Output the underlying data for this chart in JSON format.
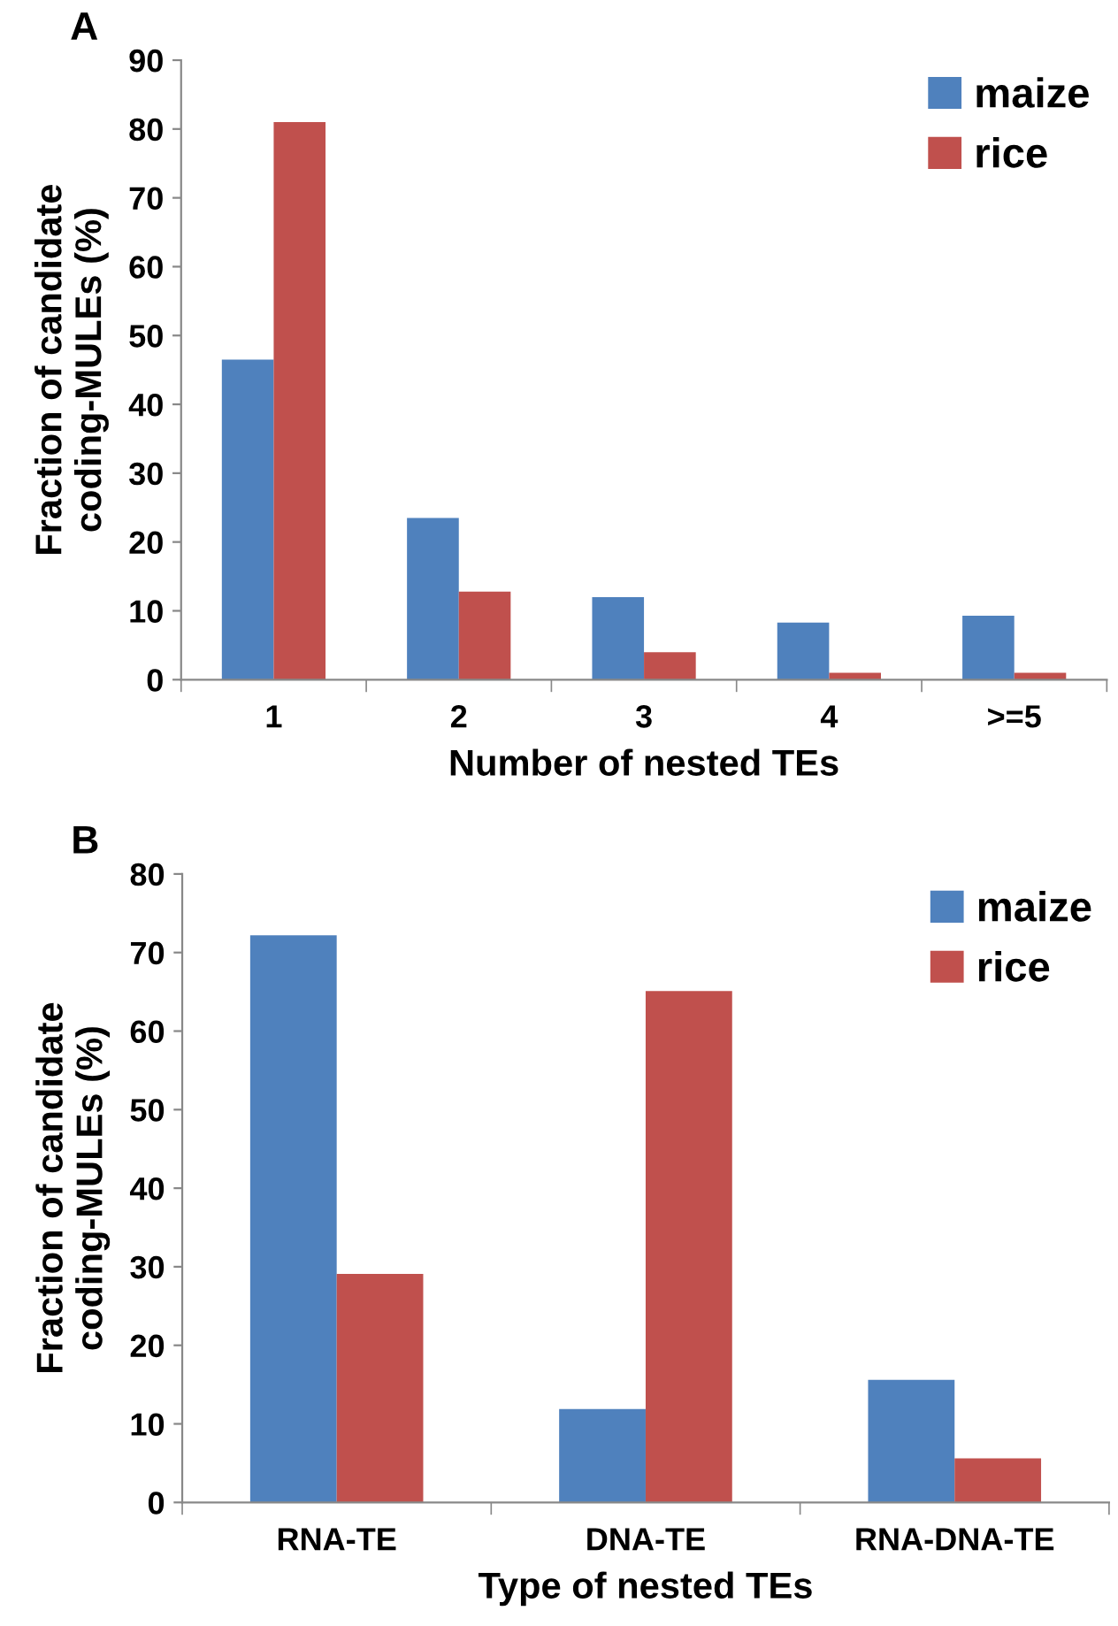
{
  "chart_data": [
    {
      "type": "bar",
      "annotations": [
        "A"
      ],
      "xlabel": "Number of nested TEs",
      "ylabel": "Fraction of candidate\ncoding-MULEs (%)",
      "categories": [
        "1",
        "2",
        "3",
        "4",
        ">=5"
      ],
      "series": [
        {
          "name": "maize",
          "color": "#4f81bd",
          "values": [
            46.5,
            23.5,
            12,
            8.3,
            9.3
          ]
        },
        {
          "name": "rice",
          "color": "#c0504d",
          "values": [
            81,
            12.8,
            4,
            1,
            1
          ]
        }
      ],
      "ylim": [
        0,
        90
      ],
      "yticks": [
        0,
        10,
        20,
        30,
        40,
        50,
        60,
        70,
        80,
        90
      ],
      "legend": "top right",
      "grid": false
    },
    {
      "type": "bar",
      "annotations": [
        "B"
      ],
      "xlabel": "Type of nested TEs",
      "ylabel": "Fraction of candidate\ncoding-MULEs (%)",
      "categories": [
        "RNA-TE",
        "DNA-TE",
        "RNA-DNA-TE"
      ],
      "series": [
        {
          "name": "maize",
          "color": "#4f81bd",
          "values": [
            72.2,
            11.9,
            15.6
          ]
        },
        {
          "name": "rice",
          "color": "#c0504d",
          "values": [
            29.1,
            65.1,
            5.6
          ]
        }
      ],
      "ylim": [
        0,
        80
      ],
      "yticks": [
        0,
        10,
        20,
        30,
        40,
        50,
        60,
        70,
        80
      ],
      "legend": "top right",
      "grid": false
    }
  ]
}
